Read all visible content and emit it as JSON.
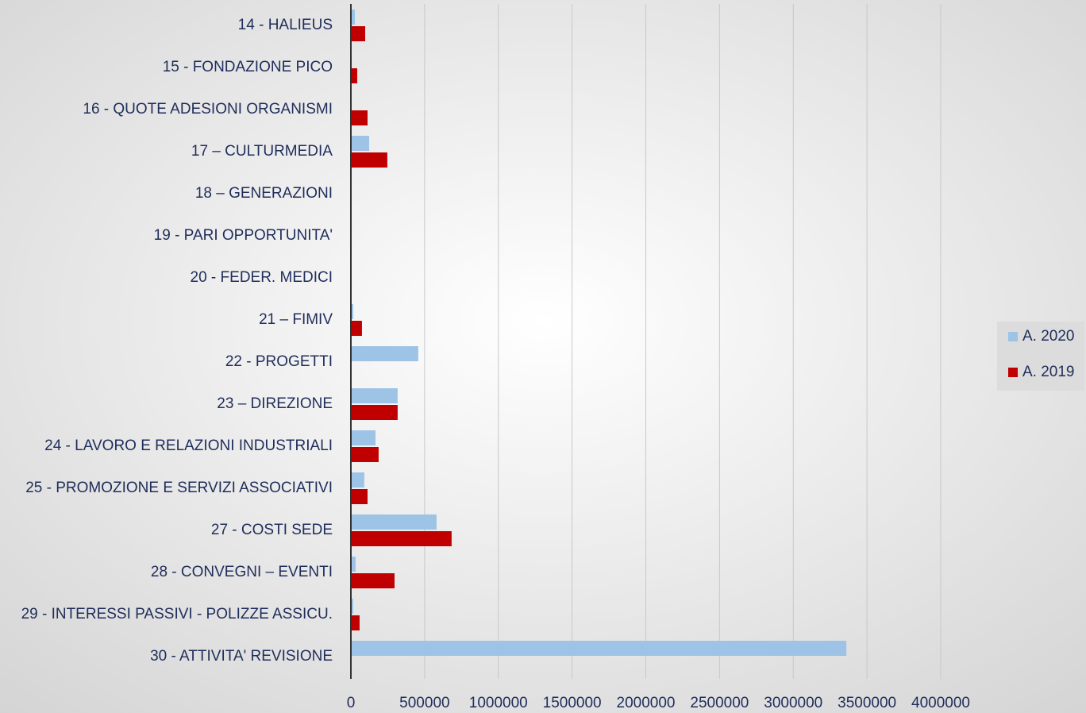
{
  "chart_data": {
    "type": "bar",
    "orientation": "horizontal",
    "categories": [
      "14 - HALIEUS",
      "15 - FONDAZIONE PICO",
      "16 - QUOTE ADESIONI ORGANISMI",
      "17 – CULTURMEDIA",
      "18 – GENERAZIONI",
      "19 - PARI OPPORTUNITA'",
      "20 - FEDER. MEDICI",
      "21 – FIMIV",
      "22 - PROGETTI",
      "23 – DIREZIONE",
      "24 - LAVORO E RELAZIONI INDUSTRIALI",
      "25 - PROMOZIONE E SERVIZI ASSOCIATIVI",
      "27 - COSTI SEDE",
      "28 - CONVEGNI – EVENTI",
      "29 - INTERESSI  PASSIVI - POLIZZE ASSICU.",
      "30 - ATTIVITA' REVISIONE"
    ],
    "series": [
      {
        "name": "A. 2020",
        "color": "#9dc3e6",
        "values": [
          27000,
          2000,
          2000,
          124000,
          0,
          0,
          3000,
          16000,
          457000,
          317000,
          167000,
          91000,
          581000,
          32000,
          16000,
          3360000
        ]
      },
      {
        "name": "A. 2019",
        "color": "#c00000",
        "values": [
          97000,
          43000,
          113000,
          247000,
          0,
          0,
          5000,
          75000,
          0,
          317000,
          188000,
          113000,
          683000,
          296000,
          59000,
          0
        ]
      }
    ],
    "xlim": [
      0,
      4000000
    ],
    "xticks": [
      0,
      500000,
      1000000,
      1500000,
      2000000,
      2500000,
      3000000,
      3500000,
      4000000
    ],
    "grid": true,
    "legend": "right"
  }
}
